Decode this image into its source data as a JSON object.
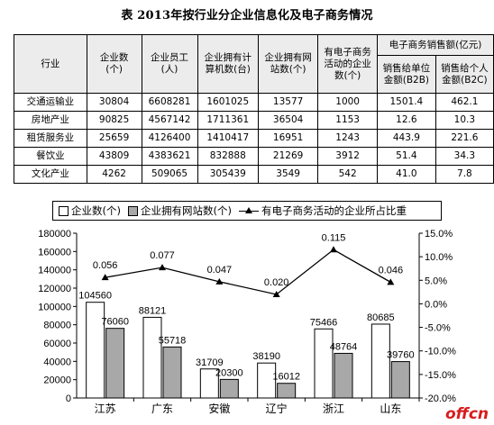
{
  "title": "表 2013年按行业分企业信息化及电子商务情况",
  "table": {
    "headers": [
      "行业",
      "企业数\n(个)",
      "企业员工\n(人)",
      "企业拥有计\n算机数(台)",
      "企业拥有网\n站数(个)",
      "有电子商务\n活动的企业\n数(个)"
    ],
    "ecommerce_header": "电子商务销售额(亿元)",
    "ecommerce_sub": [
      "销售给单位\n金额(B2B)",
      "销售给个人\n金额(B2C)"
    ],
    "rows": [
      [
        "交通运输业",
        "30804",
        "6608281",
        "1601025",
        "13577",
        "1000",
        "1501.4",
        "462.1"
      ],
      [
        "房地产业",
        "90825",
        "4567142",
        "1711361",
        "36504",
        "1153",
        "12.6",
        "10.3"
      ],
      [
        "租赁服务业",
        "25659",
        "4126400",
        "1410417",
        "16951",
        "1243",
        "443.9",
        "221.6"
      ],
      [
        "餐饮业",
        "43809",
        "4383621",
        "832888",
        "21269",
        "3912",
        "51.4",
        "34.3"
      ],
      [
        "文化产业",
        "4262",
        "509065",
        "305439",
        "3549",
        "542",
        "41.0",
        "7.8"
      ]
    ]
  },
  "legend": {
    "bar1": "企业数(个)",
    "bar2": "企业拥有网站数(个)",
    "line": "有电子商务活动的企业所占比重"
  },
  "colors": {
    "bar1": "#ffffff",
    "bar2": "#a8a8a8",
    "line": "#000000"
  },
  "chart_data": {
    "type": "bar",
    "categories": [
      "江苏",
      "广东",
      "安徽",
      "辽宁",
      "浙江",
      "山东"
    ],
    "series": [
      {
        "name": "企业数(个)",
        "values": [
          104560,
          88121,
          31709,
          38190,
          75466,
          80685
        ]
      },
      {
        "name": "企业拥有网站数(个)",
        "values": [
          76060,
          55718,
          20300,
          16012,
          48764,
          39760
        ]
      },
      {
        "name": "有电子商务活动的企业所占比重",
        "type": "line",
        "axis": "right",
        "values": [
          0.056,
          0.077,
          0.047,
          0.02,
          0.115,
          0.046
        ]
      }
    ],
    "ylim": [
      0,
      180000
    ],
    "yticks": [
      0,
      20000,
      40000,
      60000,
      80000,
      100000,
      120000,
      140000,
      160000,
      180000
    ],
    "y2lim": [
      -0.2,
      0.15
    ],
    "y2ticks": [
      "-20.0%",
      "-15.0%",
      "-10.0%",
      "-5.0%",
      "0.0%",
      "5.0%",
      "10.0%",
      "15.0%"
    ],
    "legend_position": "top"
  },
  "watermark": "offcn"
}
